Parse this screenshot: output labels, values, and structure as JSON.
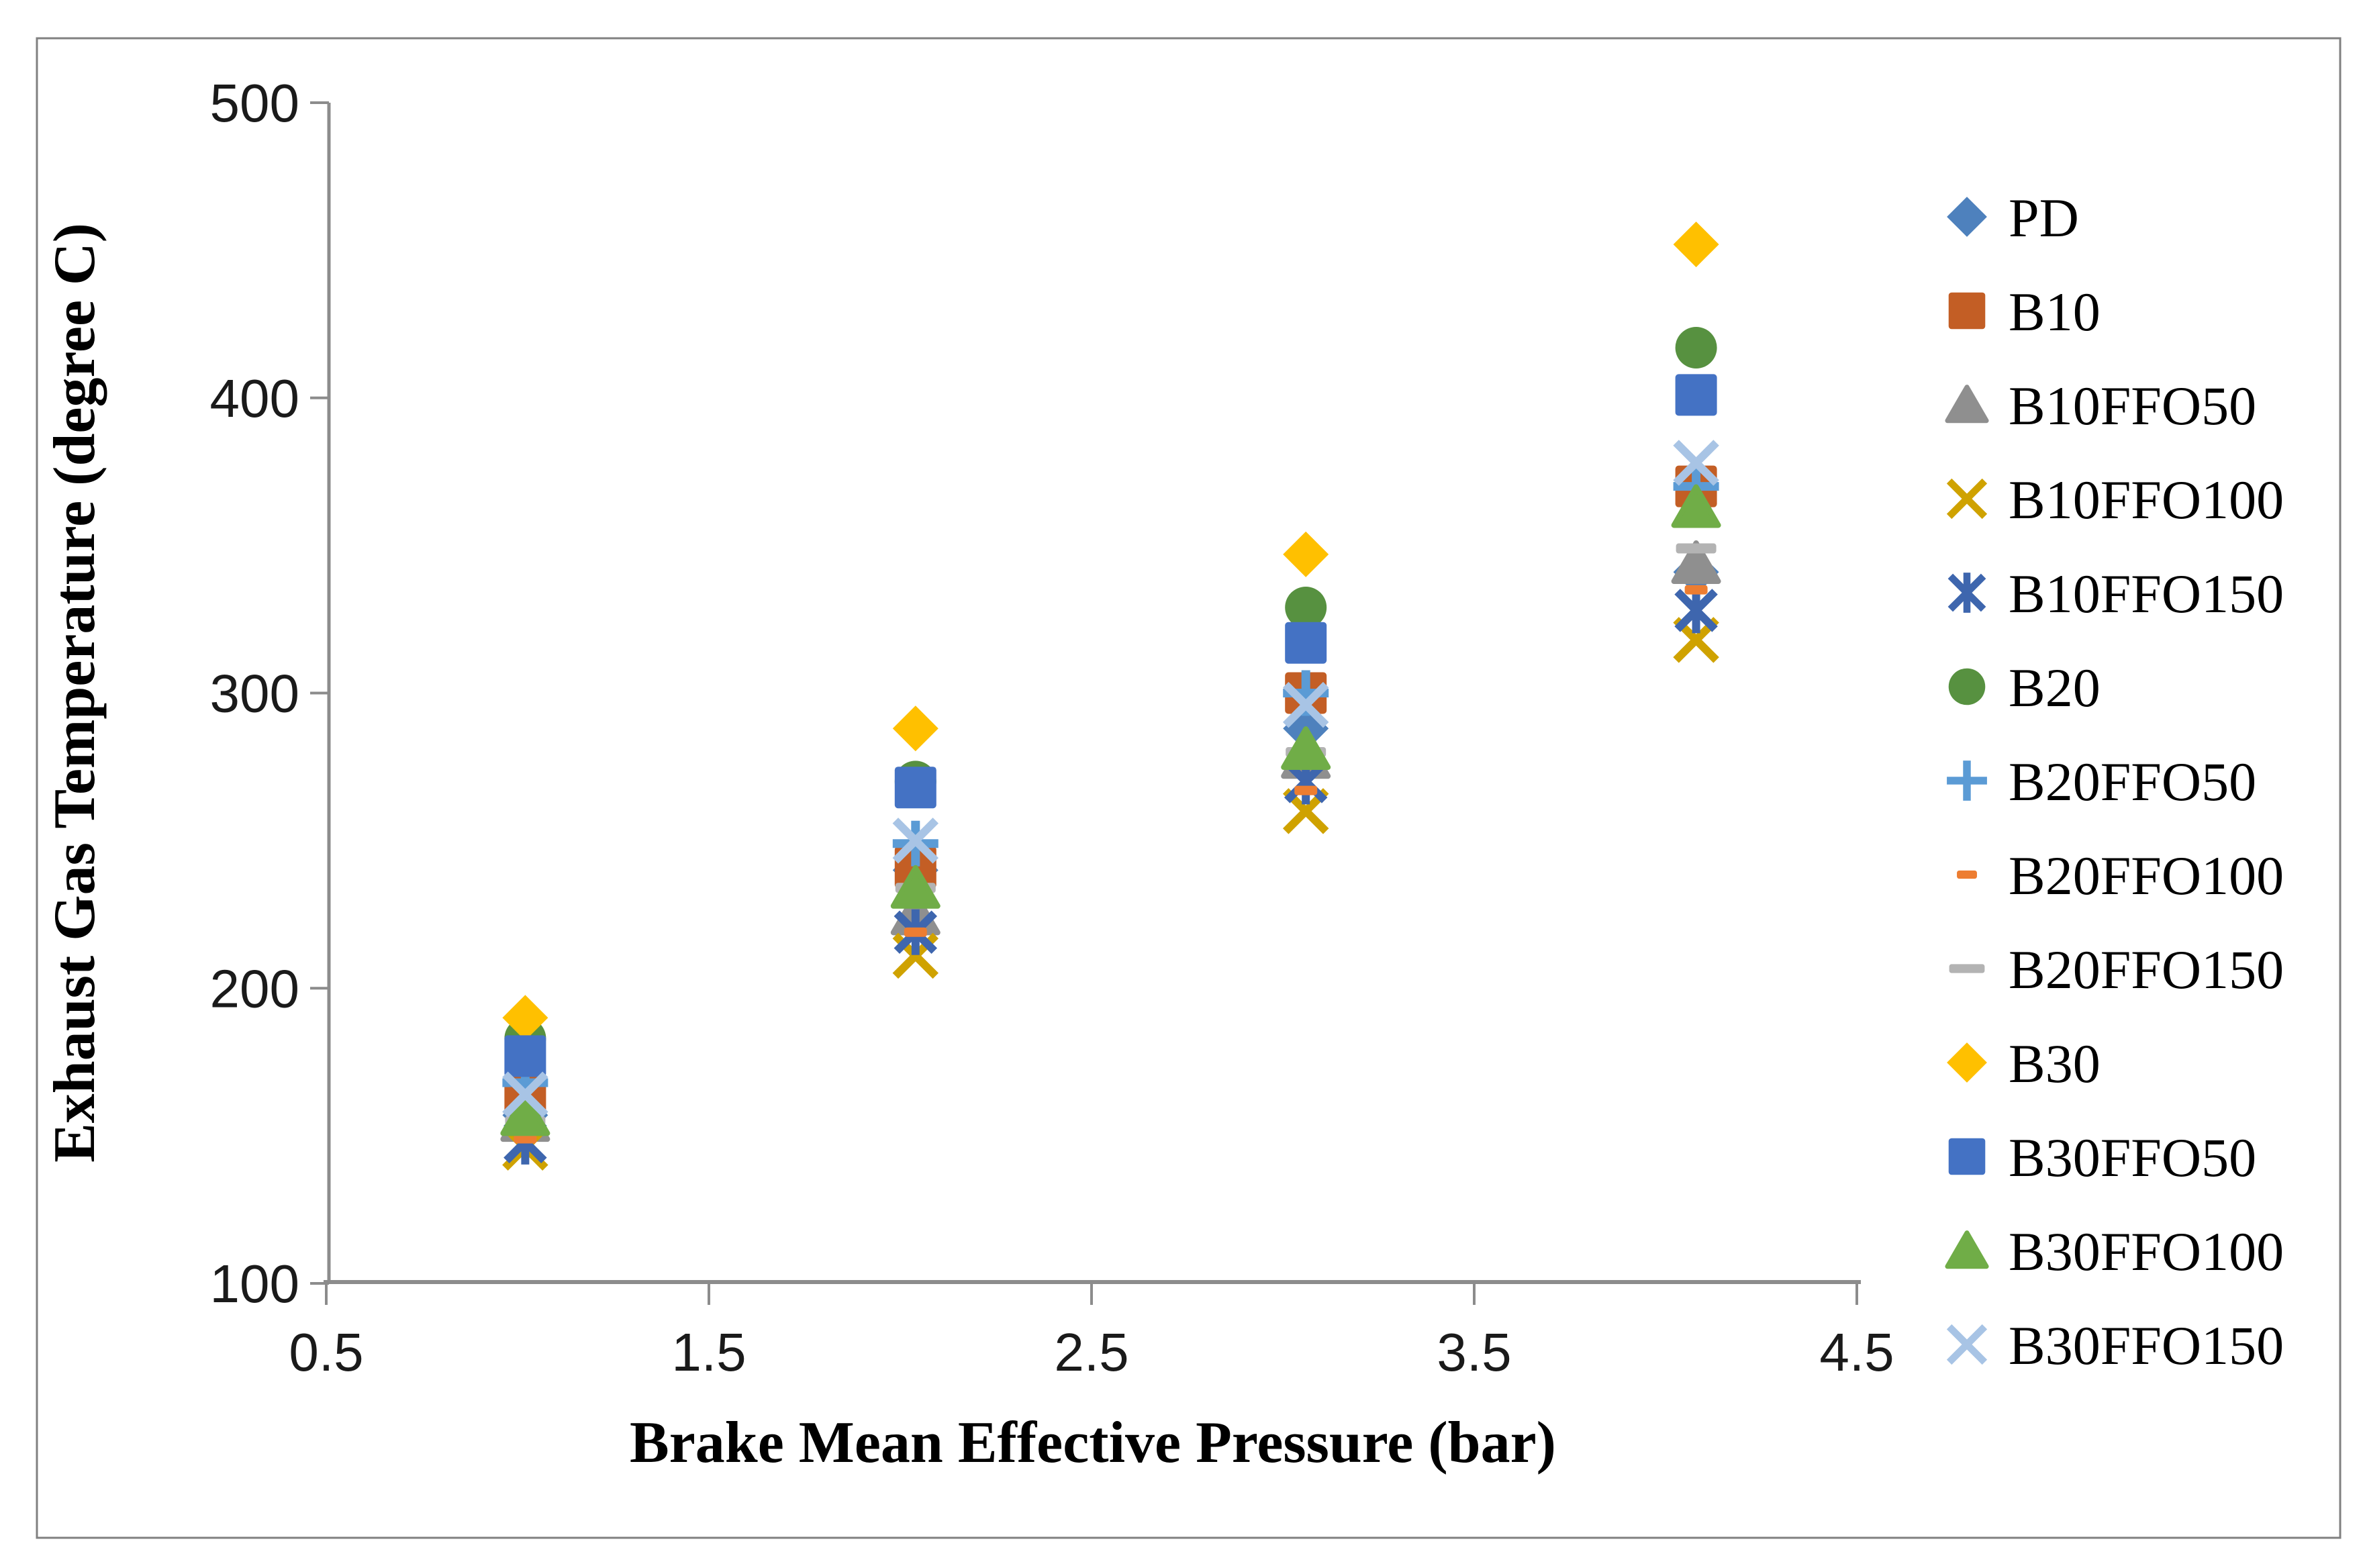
{
  "figure": {
    "background": "#FFFFFF",
    "border_color": "#808080"
  },
  "axis": {
    "line_color": "#8C8C8C",
    "tick_color": "#8C8C8C",
    "label_color": "#1A1A1A"
  },
  "chart_data": {
    "type": "scatter",
    "title": "",
    "xlabel": "Brake Mean Effective Pressure (bar)",
    "ylabel": "Exhaust Gas Temperature (degree C)",
    "xlim": [
      0.5,
      4.5
    ],
    "ylim": [
      100,
      500
    ],
    "xticks": [
      0.5,
      1.5,
      2.5,
      3.5,
      4.5
    ],
    "yticks": [
      100,
      200,
      300,
      400,
      500
    ],
    "grid": false,
    "legend_position": "right",
    "x": [
      1.02,
      2.04,
      3.06,
      4.08
    ],
    "series": [
      {
        "name": "PD",
        "marker": "diamond",
        "color": "#4E81BD",
        "values": [
          157,
          240,
          288,
          341
        ]
      },
      {
        "name": "B10",
        "marker": "square",
        "color": "#C35E25",
        "values": [
          164,
          241,
          300,
          370
        ]
      },
      {
        "name": "B10FFO50",
        "marker": "triangle",
        "color": "#8F8F8F",
        "values": [
          155,
          225,
          278,
          344
        ]
      },
      {
        "name": "B10FFO100",
        "marker": "x",
        "color": "#CFA200",
        "values": [
          146,
          211,
          260,
          318
        ]
      },
      {
        "name": "B10FFO150",
        "marker": "asterisk",
        "color": "#3E66AE",
        "values": [
          148,
          219,
          270,
          328
        ]
      },
      {
        "name": "B20",
        "marker": "circle",
        "color": "#579140",
        "values": [
          183,
          270,
          329,
          417
        ]
      },
      {
        "name": "B20FFO50",
        "marker": "plus",
        "color": "#5B9BD5",
        "values": [
          168,
          249,
          300,
          370
        ]
      },
      {
        "name": "B20FFO100",
        "marker": "dash-short",
        "color": "#ED7D31",
        "values": [
          149,
          219,
          267,
          335
        ]
      },
      {
        "name": "B20FFO150",
        "marker": "dash-long",
        "color": "#B3B3B3",
        "values": [
          155,
          234,
          280,
          349
        ]
      },
      {
        "name": "B30",
        "marker": "diamond",
        "color": "#FFC000",
        "values": [
          190,
          288,
          347,
          452
        ]
      },
      {
        "name": "B30FFO50",
        "marker": "square",
        "color": "#4472C4",
        "values": [
          177,
          268,
          317,
          401
        ]
      },
      {
        "name": "B30FFO100",
        "marker": "triangle",
        "color": "#70AD47",
        "values": [
          157,
          234,
          281,
          363
        ]
      },
      {
        "name": "B30FFO150",
        "marker": "x",
        "color": "#A8C4E5",
        "values": [
          164,
          250,
          296,
          378
        ]
      }
    ]
  }
}
